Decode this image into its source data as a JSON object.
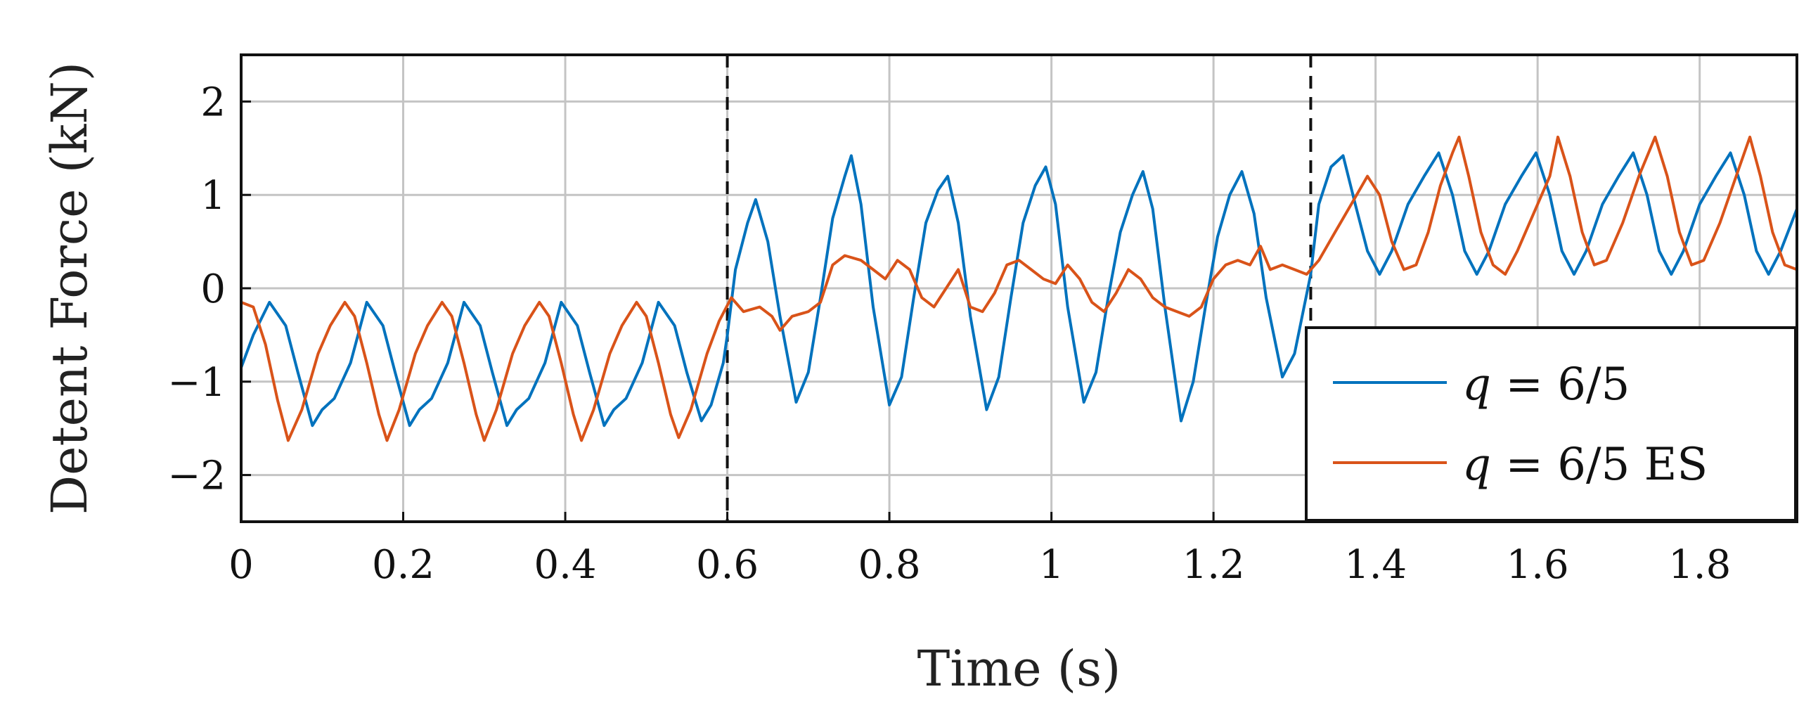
{
  "chart_data": {
    "type": "line",
    "xlabel": "Time (s)",
    "ylabel": "Detent Force (kN)",
    "xlim": [
      0,
      1.92
    ],
    "ylim": [
      -2.5,
      2.5
    ],
    "x_ticks": [
      0,
      0.2,
      0.4,
      0.6,
      0.8,
      1,
      1.2,
      1.4,
      1.6,
      1.8
    ],
    "x_tick_labels": [
      "0",
      "0.2",
      "0.4",
      "0.6",
      "0.8",
      "1",
      "1.2",
      "1.4",
      "1.6",
      "1.8"
    ],
    "y_ticks": [
      -2,
      -1,
      0,
      1,
      2
    ],
    "y_tick_labels": [
      "−2",
      "−1",
      "0",
      "1",
      "2"
    ],
    "grid": true,
    "legend_position": "bottom-right",
    "vertical_dashed_lines_x": [
      0.6,
      1.32
    ],
    "colors": {
      "series_1": "#0072BD",
      "series_2": "#D95319"
    },
    "series": [
      {
        "name": "q = 6/5",
        "name_var": "q",
        "name_rest": " = 6/5",
        "points": [
          [
            0.0,
            -0.85
          ],
          [
            0.015,
            -0.5
          ],
          [
            0.035,
            -0.15
          ],
          [
            0.055,
            -0.4
          ],
          [
            0.07,
            -0.9
          ],
          [
            0.088,
            -1.47
          ],
          [
            0.1,
            -1.3
          ],
          [
            0.115,
            -1.18
          ],
          [
            0.135,
            -0.8
          ],
          [
            0.155,
            -0.15
          ],
          [
            0.175,
            -0.4
          ],
          [
            0.19,
            -0.9
          ],
          [
            0.208,
            -1.47
          ],
          [
            0.22,
            -1.3
          ],
          [
            0.235,
            -1.18
          ],
          [
            0.255,
            -0.8
          ],
          [
            0.275,
            -0.15
          ],
          [
            0.295,
            -0.4
          ],
          [
            0.31,
            -0.9
          ],
          [
            0.328,
            -1.47
          ],
          [
            0.34,
            -1.3
          ],
          [
            0.355,
            -1.18
          ],
          [
            0.375,
            -0.8
          ],
          [
            0.395,
            -0.15
          ],
          [
            0.415,
            -0.4
          ],
          [
            0.43,
            -0.9
          ],
          [
            0.448,
            -1.47
          ],
          [
            0.46,
            -1.3
          ],
          [
            0.475,
            -1.18
          ],
          [
            0.495,
            -0.8
          ],
          [
            0.515,
            -0.15
          ],
          [
            0.535,
            -0.4
          ],
          [
            0.55,
            -0.9
          ],
          [
            0.568,
            -1.42
          ],
          [
            0.58,
            -1.25
          ],
          [
            0.595,
            -0.8
          ],
          [
            0.6,
            -0.5
          ],
          [
            0.61,
            0.2
          ],
          [
            0.625,
            0.7
          ],
          [
            0.635,
            0.95
          ],
          [
            0.65,
            0.5
          ],
          [
            0.665,
            -0.3
          ],
          [
            0.685,
            -1.22
          ],
          [
            0.7,
            -0.9
          ],
          [
            0.715,
            -0.1
          ],
          [
            0.73,
            0.75
          ],
          [
            0.745,
            1.2
          ],
          [
            0.753,
            1.42
          ],
          [
            0.765,
            0.9
          ],
          [
            0.78,
            -0.2
          ],
          [
            0.8,
            -1.25
          ],
          [
            0.815,
            -0.95
          ],
          [
            0.83,
            -0.1
          ],
          [
            0.845,
            0.7
          ],
          [
            0.86,
            1.05
          ],
          [
            0.872,
            1.2
          ],
          [
            0.885,
            0.7
          ],
          [
            0.9,
            -0.3
          ],
          [
            0.92,
            -1.3
          ],
          [
            0.935,
            -0.95
          ],
          [
            0.95,
            -0.1
          ],
          [
            0.965,
            0.7
          ],
          [
            0.98,
            1.1
          ],
          [
            0.993,
            1.3
          ],
          [
            1.005,
            0.9
          ],
          [
            1.02,
            -0.2
          ],
          [
            1.04,
            -1.22
          ],
          [
            1.055,
            -0.9
          ],
          [
            1.07,
            -0.1
          ],
          [
            1.085,
            0.6
          ],
          [
            1.1,
            1.0
          ],
          [
            1.113,
            1.25
          ],
          [
            1.125,
            0.85
          ],
          [
            1.14,
            -0.2
          ],
          [
            1.16,
            -1.42
          ],
          [
            1.175,
            -1.0
          ],
          [
            1.19,
            -0.2
          ],
          [
            1.205,
            0.55
          ],
          [
            1.22,
            1.0
          ],
          [
            1.235,
            1.25
          ],
          [
            1.25,
            0.8
          ],
          [
            1.265,
            -0.1
          ],
          [
            1.285,
            -0.95
          ],
          [
            1.3,
            -0.7
          ],
          [
            1.32,
            0.15
          ],
          [
            1.33,
            0.9
          ],
          [
            1.345,
            1.3
          ],
          [
            1.36,
            1.42
          ],
          [
            1.375,
            0.9
          ],
          [
            1.39,
            0.4
          ],
          [
            1.405,
            0.15
          ],
          [
            1.42,
            0.4
          ],
          [
            1.44,
            0.9
          ],
          [
            1.46,
            1.2
          ],
          [
            1.478,
            1.45
          ],
          [
            1.495,
            1.0
          ],
          [
            1.51,
            0.4
          ],
          [
            1.525,
            0.15
          ],
          [
            1.54,
            0.4
          ],
          [
            1.56,
            0.9
          ],
          [
            1.58,
            1.2
          ],
          [
            1.598,
            1.45
          ],
          [
            1.615,
            1.0
          ],
          [
            1.63,
            0.4
          ],
          [
            1.645,
            0.15
          ],
          [
            1.66,
            0.4
          ],
          [
            1.68,
            0.9
          ],
          [
            1.7,
            1.2
          ],
          [
            1.718,
            1.45
          ],
          [
            1.735,
            1.0
          ],
          [
            1.75,
            0.4
          ],
          [
            1.765,
            0.15
          ],
          [
            1.78,
            0.4
          ],
          [
            1.8,
            0.9
          ],
          [
            1.82,
            1.2
          ],
          [
            1.838,
            1.45
          ],
          [
            1.855,
            1.0
          ],
          [
            1.87,
            0.4
          ],
          [
            1.885,
            0.15
          ],
          [
            1.9,
            0.4
          ],
          [
            1.92,
            0.85
          ]
        ]
      },
      {
        "name": "q = 6/5 ES",
        "name_var": "q",
        "name_rest": " = 6/5 ES",
        "points": [
          [
            0.0,
            -0.15
          ],
          [
            0.015,
            -0.2
          ],
          [
            0.03,
            -0.6
          ],
          [
            0.045,
            -1.2
          ],
          [
            0.058,
            -1.63
          ],
          [
            0.075,
            -1.3
          ],
          [
            0.095,
            -0.7
          ],
          [
            0.11,
            -0.4
          ],
          [
            0.128,
            -0.15
          ],
          [
            0.14,
            -0.3
          ],
          [
            0.155,
            -0.8
          ],
          [
            0.17,
            -1.35
          ],
          [
            0.18,
            -1.63
          ],
          [
            0.195,
            -1.3
          ],
          [
            0.215,
            -0.7
          ],
          [
            0.23,
            -0.4
          ],
          [
            0.248,
            -0.15
          ],
          [
            0.26,
            -0.3
          ],
          [
            0.275,
            -0.8
          ],
          [
            0.29,
            -1.35
          ],
          [
            0.3,
            -1.63
          ],
          [
            0.315,
            -1.3
          ],
          [
            0.335,
            -0.7
          ],
          [
            0.35,
            -0.4
          ],
          [
            0.368,
            -0.15
          ],
          [
            0.38,
            -0.3
          ],
          [
            0.395,
            -0.8
          ],
          [
            0.41,
            -1.35
          ],
          [
            0.42,
            -1.63
          ],
          [
            0.435,
            -1.3
          ],
          [
            0.455,
            -0.7
          ],
          [
            0.47,
            -0.4
          ],
          [
            0.488,
            -0.15
          ],
          [
            0.5,
            -0.3
          ],
          [
            0.515,
            -0.8
          ],
          [
            0.53,
            -1.35
          ],
          [
            0.54,
            -1.6
          ],
          [
            0.555,
            -1.3
          ],
          [
            0.575,
            -0.7
          ],
          [
            0.59,
            -0.35
          ],
          [
            0.605,
            -0.1
          ],
          [
            0.62,
            -0.25
          ],
          [
            0.64,
            -0.2
          ],
          [
            0.655,
            -0.3
          ],
          [
            0.665,
            -0.45
          ],
          [
            0.68,
            -0.3
          ],
          [
            0.7,
            -0.25
          ],
          [
            0.715,
            -0.15
          ],
          [
            0.73,
            0.25
          ],
          [
            0.745,
            0.35
          ],
          [
            0.765,
            0.3
          ],
          [
            0.78,
            0.2
          ],
          [
            0.795,
            0.1
          ],
          [
            0.81,
            0.3
          ],
          [
            0.825,
            0.2
          ],
          [
            0.84,
            -0.1
          ],
          [
            0.855,
            -0.2
          ],
          [
            0.87,
            0.0
          ],
          [
            0.885,
            0.2
          ],
          [
            0.9,
            -0.2
          ],
          [
            0.915,
            -0.25
          ],
          [
            0.93,
            -0.05
          ],
          [
            0.945,
            0.25
          ],
          [
            0.96,
            0.3
          ],
          [
            0.975,
            0.2
          ],
          [
            0.99,
            0.1
          ],
          [
            1.005,
            0.05
          ],
          [
            1.02,
            0.25
          ],
          [
            1.035,
            0.1
          ],
          [
            1.05,
            -0.15
          ],
          [
            1.065,
            -0.25
          ],
          [
            1.08,
            -0.05
          ],
          [
            1.095,
            0.2
          ],
          [
            1.11,
            0.1
          ],
          [
            1.125,
            -0.1
          ],
          [
            1.14,
            -0.2
          ],
          [
            1.155,
            -0.25
          ],
          [
            1.17,
            -0.3
          ],
          [
            1.185,
            -0.2
          ],
          [
            1.2,
            0.1
          ],
          [
            1.215,
            0.25
          ],
          [
            1.23,
            0.3
          ],
          [
            1.245,
            0.25
          ],
          [
            1.258,
            0.45
          ],
          [
            1.27,
            0.2
          ],
          [
            1.285,
            0.25
          ],
          [
            1.3,
            0.2
          ],
          [
            1.315,
            0.15
          ],
          [
            1.33,
            0.3
          ],
          [
            1.35,
            0.6
          ],
          [
            1.37,
            0.9
          ],
          [
            1.39,
            1.2
          ],
          [
            1.405,
            1.0
          ],
          [
            1.42,
            0.5
          ],
          [
            1.435,
            0.2
          ],
          [
            1.45,
            0.25
          ],
          [
            1.465,
            0.6
          ],
          [
            1.48,
            1.1
          ],
          [
            1.495,
            1.45
          ],
          [
            1.503,
            1.62
          ],
          [
            1.515,
            1.2
          ],
          [
            1.53,
            0.6
          ],
          [
            1.545,
            0.25
          ],
          [
            1.56,
            0.15
          ],
          [
            1.575,
            0.4
          ],
          [
            1.595,
            0.8
          ],
          [
            1.615,
            1.2
          ],
          [
            1.625,
            1.62
          ],
          [
            1.64,
            1.2
          ],
          [
            1.655,
            0.6
          ],
          [
            1.67,
            0.25
          ],
          [
            1.685,
            0.3
          ],
          [
            1.705,
            0.7
          ],
          [
            1.725,
            1.2
          ],
          [
            1.745,
            1.62
          ],
          [
            1.76,
            1.2
          ],
          [
            1.775,
            0.6
          ],
          [
            1.79,
            0.25
          ],
          [
            1.805,
            0.3
          ],
          [
            1.825,
            0.7
          ],
          [
            1.845,
            1.2
          ],
          [
            1.862,
            1.62
          ],
          [
            1.875,
            1.2
          ],
          [
            1.89,
            0.6
          ],
          [
            1.905,
            0.25
          ],
          [
            1.92,
            0.2
          ]
        ]
      }
    ]
  }
}
